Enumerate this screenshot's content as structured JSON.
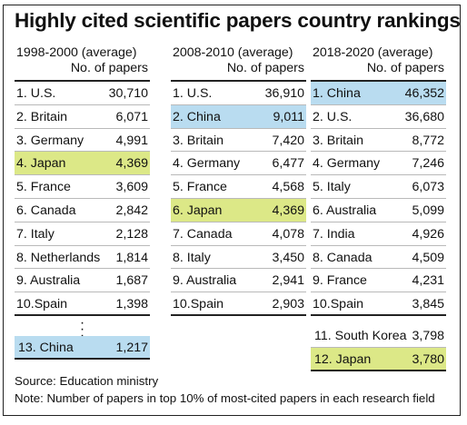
{
  "title": "Highly cited scientific papers country rankings",
  "columns": [
    {
      "period": "1998-2000 (average)",
      "subheader": "No. of papers",
      "rows": [
        {
          "name": "1. U.S.",
          "value": "30,710",
          "highlight": ""
        },
        {
          "name": "2. Britain",
          "value": "6,071",
          "highlight": ""
        },
        {
          "name": "3. Germany",
          "value": "4,991",
          "highlight": ""
        },
        {
          "name": "4. Japan",
          "value": "4,369",
          "highlight": "green"
        },
        {
          "name": "5. France",
          "value": "3,609",
          "highlight": ""
        },
        {
          "name": "6. Canada",
          "value": "2,842",
          "highlight": ""
        },
        {
          "name": "7. Italy",
          "value": "2,128",
          "highlight": ""
        },
        {
          "name": "8. Netherlands",
          "value": "1,814",
          "highlight": ""
        },
        {
          "name": "9. Australia",
          "value": "1,687",
          "highlight": ""
        },
        {
          "name": "10.Spain",
          "value": "1,398",
          "highlight": ""
        }
      ],
      "extra": [
        {
          "name": "13. China",
          "value": "1,217",
          "highlight": "blue"
        }
      ]
    },
    {
      "period": "2008-2010 (average)",
      "subheader": "No. of papers",
      "rows": [
        {
          "name": "1. U.S.",
          "value": "36,910",
          "highlight": ""
        },
        {
          "name": "2. China",
          "value": "9,011",
          "highlight": "blue"
        },
        {
          "name": "3. Britain",
          "value": "7,420",
          "highlight": ""
        },
        {
          "name": "4. Germany",
          "value": "6,477",
          "highlight": ""
        },
        {
          "name": "5. France",
          "value": "4,568",
          "highlight": ""
        },
        {
          "name": "6. Japan",
          "value": "4,369",
          "highlight": "green"
        },
        {
          "name": "7. Canada",
          "value": "4,078",
          "highlight": ""
        },
        {
          "name": "8. Italy",
          "value": "3,450",
          "highlight": ""
        },
        {
          "name": "9. Australia",
          "value": "2,941",
          "highlight": ""
        },
        {
          "name": "10.Spain",
          "value": "2,903",
          "highlight": ""
        }
      ],
      "extra": []
    },
    {
      "period": "2018-2020 (average)",
      "subheader": "No. of papers",
      "rows": [
        {
          "name": "1. China",
          "value": "46,352",
          "highlight": "blue"
        },
        {
          "name": "2. U.S.",
          "value": "36,680",
          "highlight": ""
        },
        {
          "name": "3. Britain",
          "value": "8,772",
          "highlight": ""
        },
        {
          "name": "4. Germany",
          "value": "7,246",
          "highlight": ""
        },
        {
          "name": "5. Italy",
          "value": "6,073",
          "highlight": ""
        },
        {
          "name": "6. Australia",
          "value": "5,099",
          "highlight": ""
        },
        {
          "name": "7. India",
          "value": "4,926",
          "highlight": ""
        },
        {
          "name": "8. Canada",
          "value": "4,509",
          "highlight": ""
        },
        {
          "name": "9. France",
          "value": "4,231",
          "highlight": ""
        },
        {
          "name": "10.Spain",
          "value": "3,845",
          "highlight": ""
        }
      ],
      "extra": [
        {
          "name": "11. South Korea",
          "value": "3,798",
          "highlight": ""
        },
        {
          "name": "12. Japan",
          "value": "3,780",
          "highlight": "green"
        }
      ]
    }
  ],
  "footer": {
    "source": "Source: Education ministry",
    "note": "Note: Number of papers in top 10% of most-cited papers in each research field"
  },
  "colors": {
    "china_highlight": "#b9dcf0",
    "japan_highlight": "#dce887"
  }
}
